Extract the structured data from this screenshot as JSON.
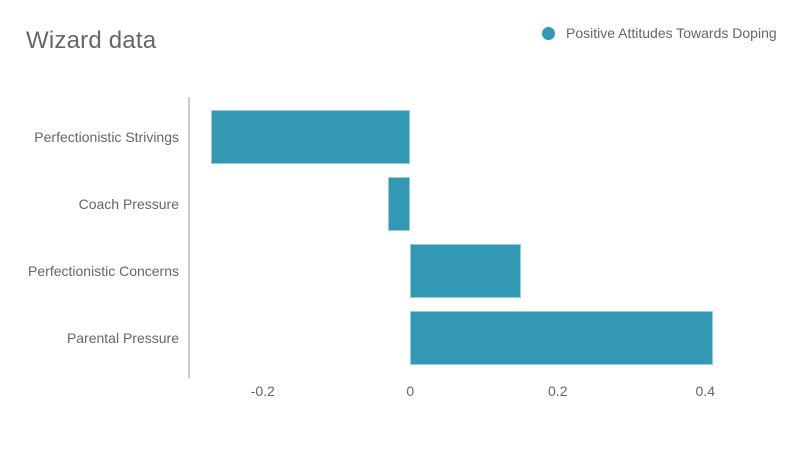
{
  "header": {
    "title": "Wizard data"
  },
  "legend": {
    "items": [
      {
        "label": "Positive Attitudes Towards Doping",
        "color": "#3398b4",
        "marker": "circle-icon"
      }
    ]
  },
  "chart_data": {
    "type": "bar",
    "orientation": "horizontal",
    "title": "Wizard data",
    "categories": [
      "Perfectionistic Strivings",
      "Coach Pressure",
      "Perfectionistic Concerns",
      "Parental Pressure"
    ],
    "series": [
      {
        "name": "Positive Attitudes Towards Doping",
        "color": "#3398b4",
        "values": [
          -0.27,
          -0.03,
          0.15,
          0.41
        ]
      }
    ],
    "xlabel": "",
    "ylabel": "",
    "xlim": [
      -0.3,
      0.5
    ],
    "xticks": [
      -0.2,
      0,
      0.2,
      0.4
    ],
    "xtick_labels": [
      "-0.2",
      "0",
      "0.2",
      "0.4"
    ],
    "grid": false,
    "legend_position": "top-right",
    "axis_line_color": "#cccccc",
    "text_color": "#666666",
    "background": "#ffffff"
  }
}
